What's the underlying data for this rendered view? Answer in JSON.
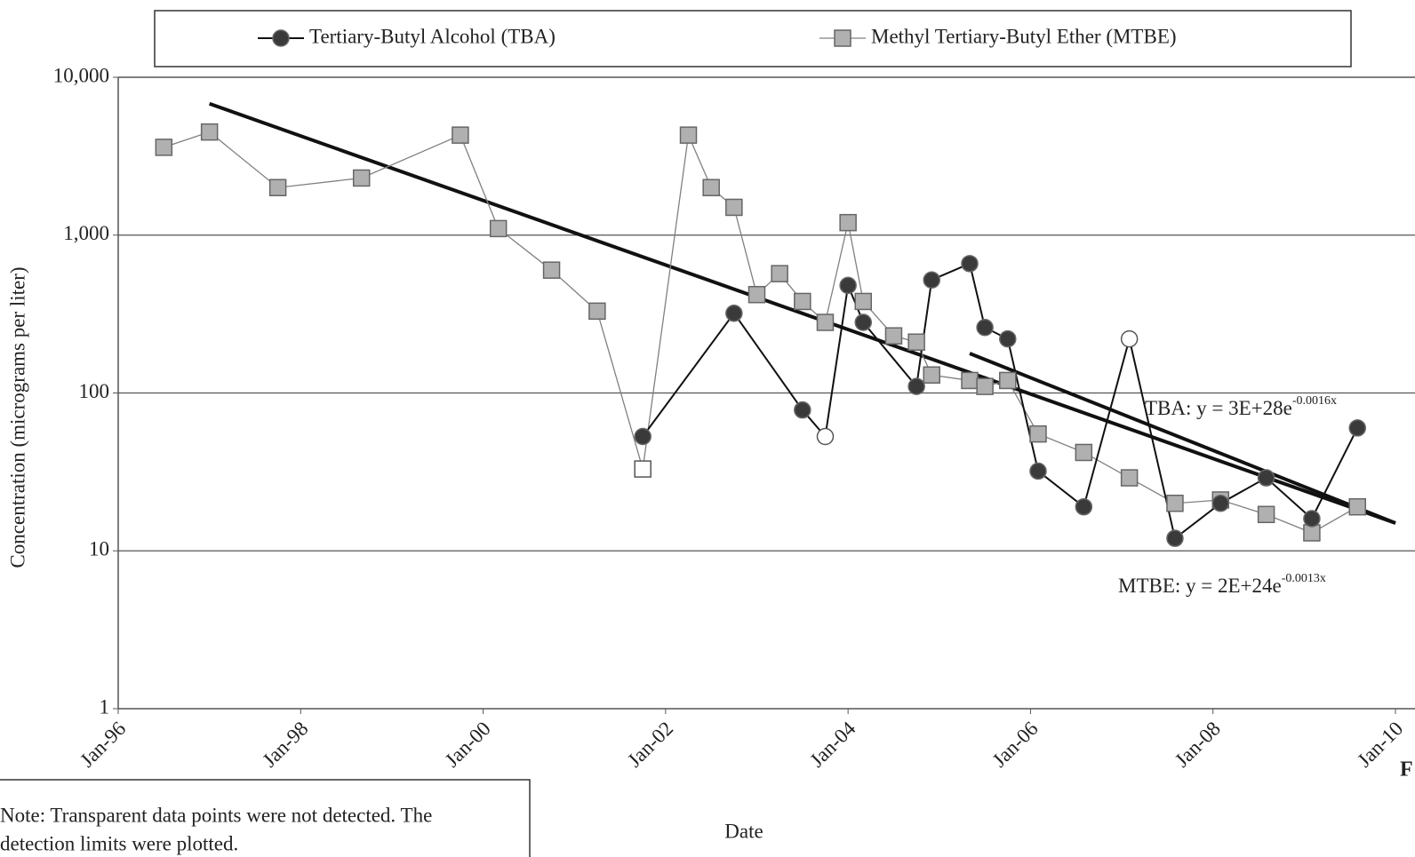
{
  "chart_data": {
    "type": "line",
    "log_scale": true,
    "grid": true,
    "y_label": "Concentration (micrograms per liter)",
    "x_label": "Date",
    "xlim": [
      "1996-01",
      "2010-01"
    ],
    "xticks": [
      {
        "value": "1996-01",
        "label": "Jan-96"
      },
      {
        "value": "1998-01",
        "label": "Jan-98"
      },
      {
        "value": "2000-01",
        "label": "Jan-00"
      },
      {
        "value": "2002-01",
        "label": "Jan-02"
      },
      {
        "value": "2004-01",
        "label": "Jan-04"
      },
      {
        "value": "2006-01",
        "label": "Jan-06"
      },
      {
        "value": "2008-01",
        "label": "Jan-08"
      },
      {
        "value": "2010-01",
        "label": "Jan-10"
      }
    ],
    "ylim": [
      1,
      10000
    ],
    "yticks": [
      1,
      10,
      100,
      {
        "value": 1000,
        "label": "1,000"
      },
      {
        "value": 10000,
        "label": "10,000"
      }
    ],
    "series": [
      {
        "name": "Tertiary-Butyl Alcohol (TBA)",
        "color": "#3a3a3a",
        "line_color": "#111111",
        "marker": "circle",
        "x": [
          "2001-10",
          "2002-10",
          "2003-07",
          "2003-10",
          "2004-01",
          "2004-03",
          "2004-10",
          "2004-12",
          "2005-05",
          "2005-07",
          "2005-10",
          "2006-02",
          "2006-08",
          "2007-02",
          "2007-08",
          "2008-02",
          "2008-08",
          "2009-02",
          "2009-08"
        ],
        "values": [
          53,
          320,
          78,
          53,
          480,
          280,
          110,
          520,
          660,
          260,
          220,
          32,
          19,
          220,
          12,
          20,
          29,
          16,
          60
        ],
        "open_markers": [
          3,
          13
        ]
      },
      {
        "name": "Methyl Tertiary-Butyl Ether (MTBE)",
        "color": "#b0b0b0",
        "line_color": "#808080",
        "marker": "square",
        "x": [
          "1996-07",
          "1997-01",
          "1997-10",
          "1998-09",
          "1999-10",
          "2000-03",
          "2000-10",
          "2001-04",
          "2001-10",
          "2002-04",
          "2002-07",
          "2002-10",
          "2003-01",
          "2003-04",
          "2003-07",
          "2003-10",
          "2004-01",
          "2004-03",
          "2004-07",
          "2004-10",
          "2004-12",
          "2005-05",
          "2005-07",
          "2005-10",
          "2006-02",
          "2006-08",
          "2007-02",
          "2007-08",
          "2008-02",
          "2008-08",
          "2009-02",
          "2009-08"
        ],
        "values": [
          3600,
          4500,
          2000,
          2300,
          4300,
          1100,
          600,
          330,
          33,
          4300,
          2000,
          1500,
          420,
          570,
          380,
          280,
          1200,
          380,
          230,
          210,
          130,
          120,
          110,
          120,
          55,
          42,
          29,
          20,
          21,
          17,
          13,
          19
        ],
        "open_markers": [
          8
        ]
      }
    ],
    "trendlines": [
      {
        "label": "TBA: y = 3E+28e",
        "exponent": "-0.0016x",
        "x": [
          "2005-05",
          "2010-01"
        ],
        "values": [
          178,
          15
        ]
      },
      {
        "label": "MTBE: y = 2E+24e",
        "exponent": "-0.0013x",
        "x": [
          "1997-01",
          "2010-01"
        ],
        "values": [
          6800,
          15
        ]
      }
    ],
    "note": [
      "Note: Transparent data points were not detected.  The",
      "detection limits were plotted."
    ],
    "figure_label": "F"
  }
}
